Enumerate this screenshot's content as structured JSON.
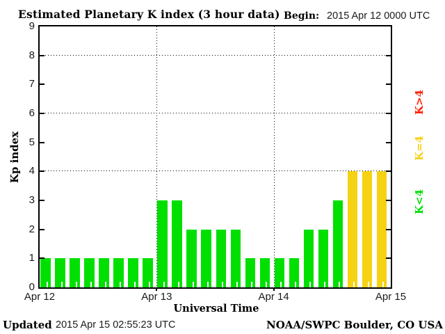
{
  "header": {
    "title": "Estimated Planetary K index (3 hour data)",
    "begin_label": "Begin:",
    "begin_value": "2015 Apr 12 0000 UTC"
  },
  "chart_data": {
    "type": "bar",
    "title": "Estimated Planetary K index (3 hour data)",
    "xlabel": "Universal Time",
    "ylabel": "Kp index",
    "ylim": [
      0,
      9
    ],
    "yticks": [
      0,
      1,
      2,
      3,
      4,
      5,
      6,
      7,
      8,
      9
    ],
    "grid_y": [
      4,
      6,
      8
    ],
    "x_day_labels": [
      "Apr 12",
      "Apr 13",
      "Apr 14",
      "Apr 15"
    ],
    "bar_interval_hours": 3,
    "begin": "2015 Apr 12 0000 UTC",
    "values": [
      1,
      1,
      1,
      1,
      1,
      1,
      1,
      1,
      3,
      3,
      2,
      2,
      2,
      2,
      1,
      1,
      1,
      1,
      2,
      2,
      3,
      4,
      4,
      4
    ],
    "color_rules": {
      "below_4": "#00E000",
      "equal_4": "#F5D214",
      "above_4": "#FF2000"
    },
    "legend": [
      {
        "label": "K>4",
        "color": "#FF2000"
      },
      {
        "label": "K=4",
        "color": "#F5D214"
      },
      {
        "label": "K<4",
        "color": "#00E000"
      }
    ],
    "legend_position": "right"
  },
  "footer": {
    "updated_label": "Updated",
    "updated_value": "2015 Apr 15 02:55:23 UTC",
    "source": "NOAA/SWPC Boulder, CO USA"
  }
}
